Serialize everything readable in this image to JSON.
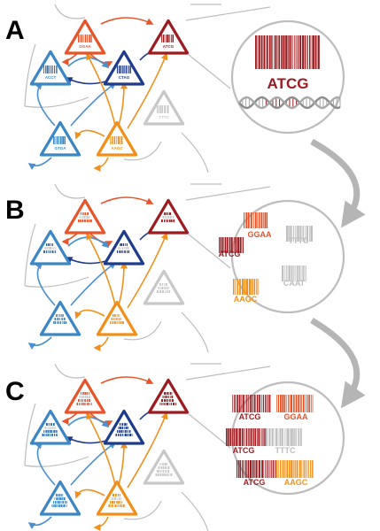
{
  "panels": [
    {
      "letter": "A",
      "nodes": [
        {
          "name": "ggaa",
          "label": "GGAA",
          "color": "#e8542a",
          "stripe": "#e8542a"
        },
        {
          "name": "atcg",
          "label": "ATCG",
          "color": "#9b1b1f",
          "stripe": "#9b1b1f"
        },
        {
          "name": "acct",
          "label": "ACCT",
          "color": "#3b87c4",
          "stripe": "#2a6aa8"
        },
        {
          "name": "ctag",
          "label": "CTAG",
          "color": "#1f3c8c",
          "stripe": "#1f3c8c"
        },
        {
          "name": "tttc",
          "label": "TTTC",
          "color": "#c8c8c8",
          "stripe": "#c8c8c8"
        },
        {
          "name": "gtga",
          "label": "GTGA",
          "color": "#3b87c4",
          "stripe": "#3b87c4"
        },
        {
          "name": "aagc",
          "label": "AAGC",
          "color": "#f0901a",
          "stripe": "#f0901a"
        }
      ],
      "zoom": {
        "type": "dna",
        "label": "ATCG",
        "color": "#9b1b1f"
      }
    },
    {
      "letter": "B",
      "zoom": {
        "type": "barcodes",
        "items": [
          {
            "label": "GGAA",
            "color": "#e8542a"
          },
          {
            "label": "TTTC",
            "color": "#bdbdbd"
          },
          {
            "label": "ATCG",
            "color": "#9b1b1f"
          },
          {
            "label": "CAAT",
            "color": "#bdbdbd"
          },
          {
            "label": "AAGC",
            "color": "#f0901a"
          }
        ]
      }
    },
    {
      "letter": "C",
      "zoom": {
        "type": "pairs",
        "items": [
          {
            "label": "ATCG",
            "color": "#9b1b1f"
          },
          {
            "label": "GGAA",
            "color": "#e8542a"
          },
          {
            "label": "ATCG",
            "color": "#9b1b1f"
          },
          {
            "label": "TTTC",
            "color": "#bdbdbd"
          },
          {
            "label": "ATCG",
            "color": "#9b1b1f"
          },
          {
            "label": "AAGC",
            "color": "#f0901a"
          }
        ]
      }
    }
  ],
  "colors": {
    "gray_line": "#bdbdbd",
    "arrow": "#b5b5b5",
    "red_edge": "#e8542a",
    "orange_edge": "#f0901a",
    "blue_edge": "#4a90cf",
    "navy_edge": "#1f3c8c"
  }
}
